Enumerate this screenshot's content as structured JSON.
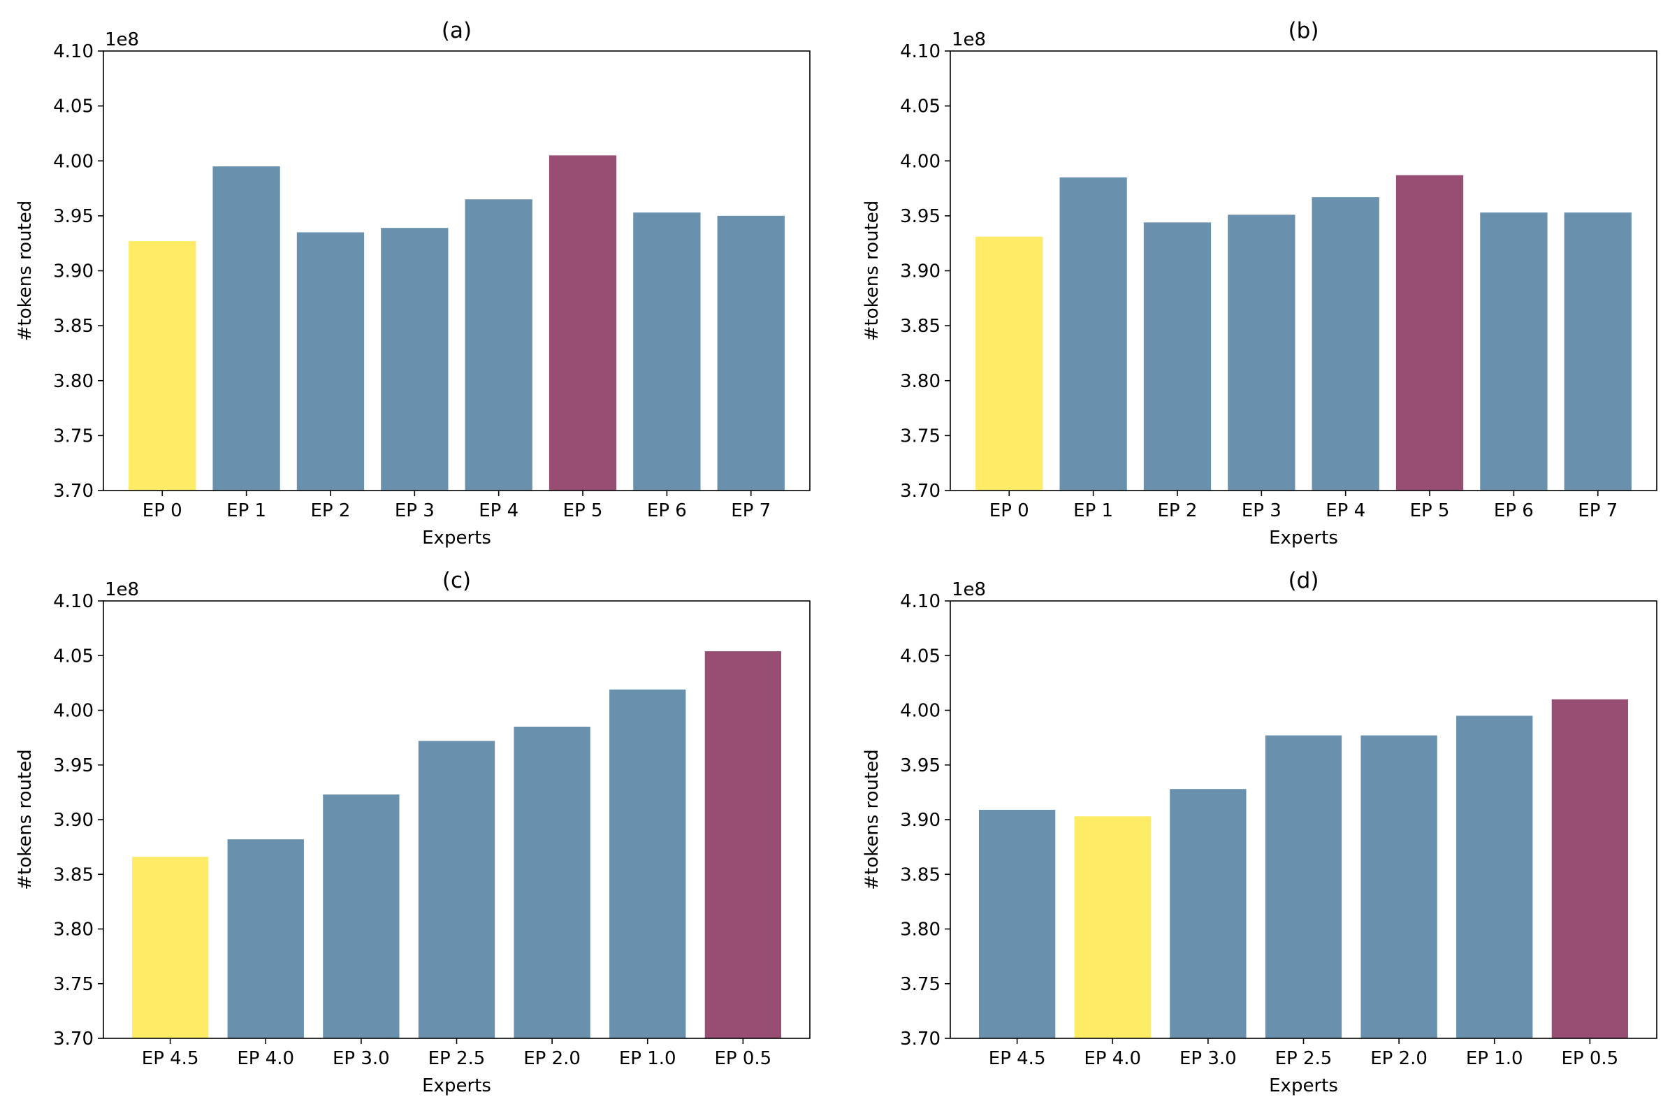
{
  "figure": {
    "background": "#ffffff"
  },
  "colors": {
    "default": "#6990ad",
    "min": "#feec67",
    "max": "#984e72"
  },
  "chart_data": [
    {
      "type": "bar",
      "title": "(a)",
      "xlabel": "Experts",
      "ylabel": "#tokens routed",
      "offset_label": "1e8",
      "ylim": [
        3.7,
        4.1
      ],
      "yticks": [
        "3.70",
        "3.75",
        "3.80",
        "3.85",
        "3.90",
        "3.95",
        "4.00",
        "4.05",
        "4.10"
      ],
      "categories": [
        "EP 0",
        "EP 1",
        "EP 2",
        "EP 3",
        "EP 4",
        "EP 5",
        "EP 6",
        "EP 7"
      ],
      "values": [
        3.927,
        3.995,
        3.935,
        3.939,
        3.965,
        4.005,
        3.953,
        3.95
      ],
      "bar_colors": [
        "min",
        "default",
        "default",
        "default",
        "default",
        "max",
        "default",
        "default"
      ]
    },
    {
      "type": "bar",
      "title": "(b)",
      "xlabel": "Experts",
      "ylabel": "#tokens routed",
      "offset_label": "1e8",
      "ylim": [
        3.7,
        4.1
      ],
      "yticks": [
        "3.70",
        "3.75",
        "3.80",
        "3.85",
        "3.90",
        "3.95",
        "4.00",
        "4.05",
        "4.10"
      ],
      "categories": [
        "EP 0",
        "EP 1",
        "EP 2",
        "EP 3",
        "EP 4",
        "EP 5",
        "EP 6",
        "EP 7"
      ],
      "values": [
        3.931,
        3.985,
        3.944,
        3.951,
        3.967,
        3.987,
        3.953,
        3.953
      ],
      "bar_colors": [
        "min",
        "default",
        "default",
        "default",
        "default",
        "max",
        "default",
        "default"
      ]
    },
    {
      "type": "bar",
      "title": "(c)",
      "xlabel": "Experts",
      "ylabel": "#tokens routed",
      "offset_label": "1e8",
      "ylim": [
        3.7,
        4.1
      ],
      "yticks": [
        "3.70",
        "3.75",
        "3.80",
        "3.85",
        "3.90",
        "3.95",
        "4.00",
        "4.05",
        "4.10"
      ],
      "categories": [
        "EP 4.5",
        "EP 4.0",
        "EP 3.0",
        "EP 2.5",
        "EP 2.0",
        "EP 1.0",
        "EP 0.5"
      ],
      "values": [
        3.866,
        3.882,
        3.923,
        3.972,
        3.985,
        4.019,
        4.054
      ],
      "bar_colors": [
        "min",
        "default",
        "default",
        "default",
        "default",
        "default",
        "max"
      ]
    },
    {
      "type": "bar",
      "title": "(d)",
      "xlabel": "Experts",
      "ylabel": "#tokens routed",
      "offset_label": "1e8",
      "ylim": [
        3.7,
        4.1
      ],
      "yticks": [
        "3.70",
        "3.75",
        "3.80",
        "3.85",
        "3.90",
        "3.95",
        "4.00",
        "4.05",
        "4.10"
      ],
      "categories": [
        "EP 4.5",
        "EP 4.0",
        "EP 3.0",
        "EP 2.5",
        "EP 2.0",
        "EP 1.0",
        "EP 0.5"
      ],
      "values": [
        3.909,
        3.903,
        3.928,
        3.977,
        3.977,
        3.995,
        4.01
      ],
      "bar_colors": [
        "default",
        "min",
        "default",
        "default",
        "default",
        "default",
        "max"
      ]
    }
  ]
}
